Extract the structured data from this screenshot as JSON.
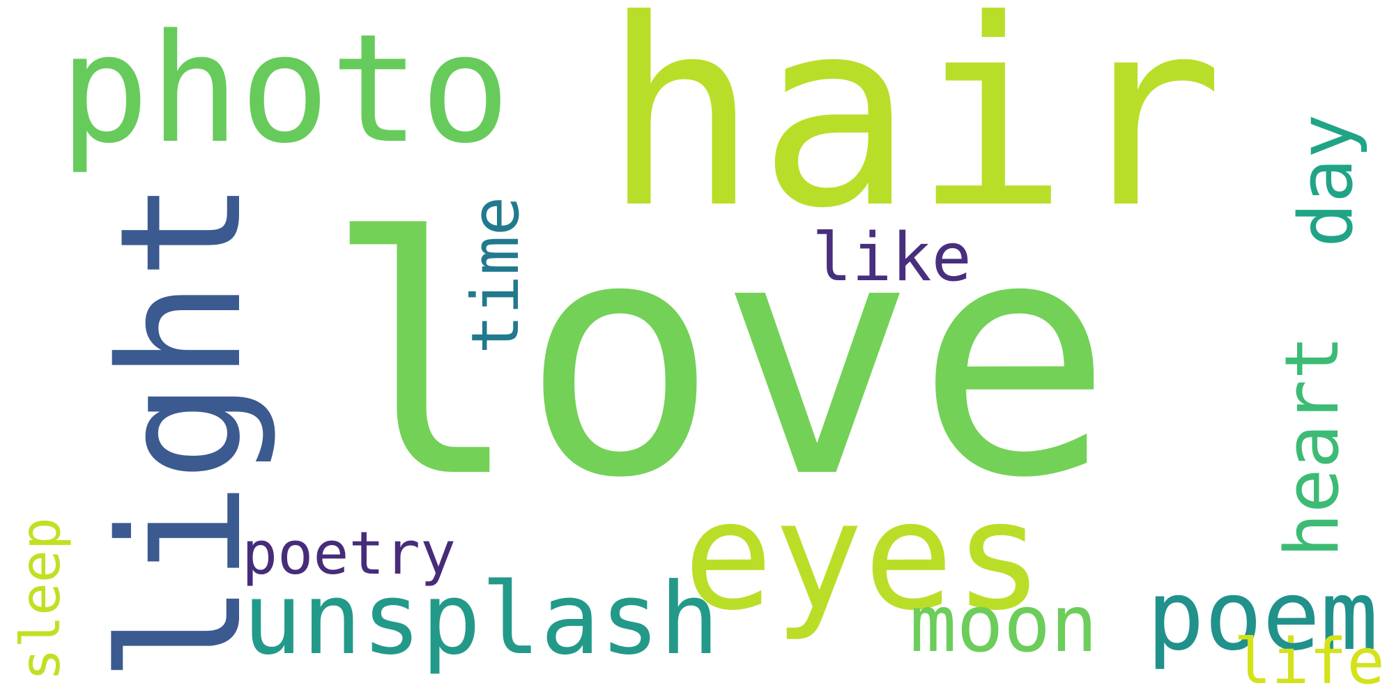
{
  "words": [
    {
      "text": "love",
      "color": "#73d157"
    },
    {
      "text": "hair",
      "color": "#b9de29"
    },
    {
      "text": "photo",
      "color": "#67cb5c"
    },
    {
      "text": "light",
      "color": "#3b5a90"
    },
    {
      "text": "eyes",
      "color": "#bade28"
    },
    {
      "text": "unsplash",
      "color": "#239a89"
    },
    {
      "text": "time",
      "color": "#21798d"
    },
    {
      "text": "like",
      "color": "#472f7d"
    },
    {
      "text": "poetry",
      "color": "#472c7a"
    },
    {
      "text": "moon",
      "color": "#6ccd5a"
    },
    {
      "text": "poem",
      "color": "#21918c"
    },
    {
      "text": "heart",
      "color": "#3cbb75"
    },
    {
      "text": "day",
      "color": "#20a486"
    },
    {
      "text": "sleep",
      "color": "#c2df23"
    },
    {
      "text": "life",
      "color": "#d3e21b"
    }
  ]
}
